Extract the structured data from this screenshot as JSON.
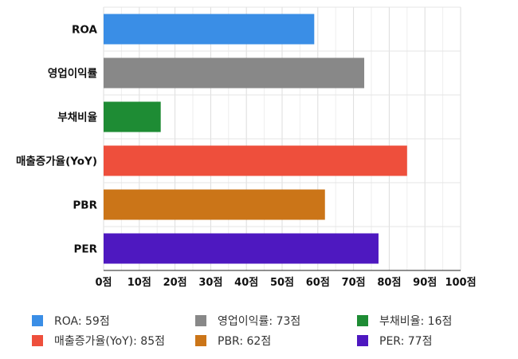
{
  "chart_data": {
    "type": "bar",
    "orientation": "horizontal",
    "title": "",
    "xlabel": "",
    "ylabel": "",
    "categories": [
      "ROA",
      "영업이익률",
      "부채비율",
      "매출증가율(YoY)",
      "PBR",
      "PER"
    ],
    "values": [
      59,
      73,
      16,
      85,
      62,
      77
    ],
    "colors": [
      "#3a8ee6",
      "#888888",
      "#1e8c34",
      "#ee4f3c",
      "#cb7518",
      "#4e18c0"
    ],
    "xlim": [
      0,
      100
    ],
    "xticks": [
      0,
      10,
      20,
      30,
      40,
      50,
      60,
      70,
      80,
      90,
      100
    ],
    "tick_suffix": "점",
    "grid": true,
    "legend_position": "bottom",
    "legend": [
      {
        "label": "ROA: 59점",
        "color": "#3a8ee6"
      },
      {
        "label": "영업이익률: 73점",
        "color": "#888888"
      },
      {
        "label": "부채비율: 16점",
        "color": "#1e8c34"
      },
      {
        "label": "매출증가율(YoY): 85점",
        "color": "#ee4f3c"
      },
      {
        "label": "PBR: 62점",
        "color": "#cb7518"
      },
      {
        "label": "PER: 77점",
        "color": "#4e18c0"
      }
    ]
  }
}
